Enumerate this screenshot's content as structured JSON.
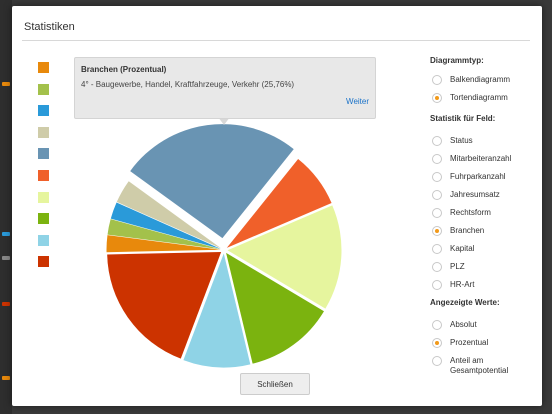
{
  "dialog": {
    "title": "Statistiken",
    "close_label": "Schließen"
  },
  "tooltip": {
    "title": "Branchen (Prozentual)",
    "text": "4° - Baugewerbe, Handel, Kraftfahrzeuge, Verkehr (25,76%)",
    "link": "Weiter"
  },
  "colors": {
    "accent": "#f29a1a",
    "link": "#1a72c8",
    "legend": [
      "#e8890c",
      "#a3c14b",
      "#2a9ad9",
      "#cfcca9",
      "#6994b3",
      "#f0602a",
      "#e6f59e",
      "#7bb30f",
      "#8fd3e6",
      "#cc3300"
    ]
  },
  "panel": {
    "diagram_type": {
      "heading": "Diagrammtyp:",
      "options": [
        "Balkendiagramm",
        "Tortendiagramm"
      ],
      "selected": 1
    },
    "field": {
      "heading": "Statistik für Feld:",
      "options": [
        "Status",
        "Mitarbeiteranzahl",
        "Fuhrparkanzahl",
        "Jahresumsatz",
        "Rechtsform",
        "Branchen",
        "Kapital",
        "PLZ",
        "HR-Art"
      ],
      "selected": 5
    },
    "values": {
      "heading": "Angezeigte Werte:",
      "options": [
        "Absolut",
        "Prozentual",
        "Anteil am Gesamtpotential"
      ],
      "selected": 1
    }
  },
  "chart_data": {
    "type": "pie",
    "title": "Branchen (Prozentual)",
    "slices": [
      {
        "value": 25.76,
        "color": "#6994b3",
        "exploded": true
      },
      {
        "value": 7.8,
        "color": "#f0602a"
      },
      {
        "value": 15.0,
        "color": "#e6f59e"
      },
      {
        "value": 12.7,
        "color": "#7bb30f"
      },
      {
        "value": 9.5,
        "color": "#8fd3e6"
      },
      {
        "value": 18.9,
        "color": "#cc3300"
      },
      {
        "value": 2.4,
        "color": "#e8890c"
      },
      {
        "value": 2.2,
        "color": "#a3c14b"
      },
      {
        "value": 2.4,
        "color": "#2a9ad9"
      },
      {
        "value": 3.34,
        "color": "#cfcca9"
      }
    ]
  }
}
